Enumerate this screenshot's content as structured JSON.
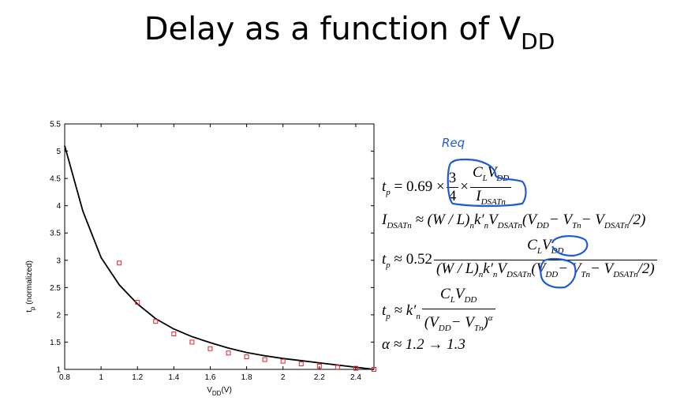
{
  "slide": {
    "title_main": "Delay as a function of V",
    "title_sub": "DD"
  },
  "chart_data": {
    "type": "line",
    "xlabel_main": "V",
    "xlabel_sub": "DD",
    "xlabel_unit": "(V)",
    "ylabel_main": "t",
    "ylabel_sub": "p",
    "ylabel_rest": "(normalized)",
    "xlim": [
      0.8,
      2.5
    ],
    "ylim": [
      1,
      5.5
    ],
    "xticks": [
      0.8,
      1,
      1.2,
      1.4,
      1.6,
      1.8,
      2,
      2.2,
      2.4
    ],
    "xtick_labels": [
      "0.8",
      "1",
      "1.2",
      "1.4",
      "1.6",
      "1.8",
      "2",
      "2.2",
      "2.4"
    ],
    "yticks": [
      1,
      1.5,
      2,
      2.5,
      3,
      3.5,
      4,
      4.5,
      5,
      5.5
    ],
    "ytick_labels": [
      "1",
      "1.5",
      "2",
      "2.5",
      "3",
      "3.5",
      "4",
      "4.5",
      "5",
      "5.5"
    ],
    "grid": false,
    "series": [
      {
        "style": "line",
        "color": "#000000",
        "x": [
          0.8,
          0.9,
          1.0,
          1.1,
          1.2,
          1.3,
          1.4,
          1.5,
          1.6,
          1.7,
          1.8,
          1.9,
          2.0,
          2.1,
          2.2,
          2.3,
          2.4,
          2.5
        ],
        "y": [
          5.1,
          3.9,
          3.05,
          2.55,
          2.2,
          1.93,
          1.74,
          1.6,
          1.49,
          1.39,
          1.31,
          1.25,
          1.2,
          1.16,
          1.12,
          1.08,
          1.04,
          1.0
        ]
      },
      {
        "style": "marker",
        "marker": "square",
        "color": "#e8202a",
        "x": [
          1.1,
          1.2,
          1.3,
          1.4,
          1.5,
          1.6,
          1.7,
          1.8,
          1.9,
          2.0,
          2.1,
          2.2,
          2.3,
          2.4,
          2.5
        ],
        "y": [
          2.95,
          2.23,
          1.88,
          1.65,
          1.5,
          1.38,
          1.3,
          1.23,
          1.18,
          1.15,
          1.1,
          1.06,
          1.04,
          1.02,
          1.0
        ]
      }
    ]
  },
  "equations": {
    "eq1": {
      "lhs": "t",
      "lhs_sub": "p",
      "coef": "= 0.69 ×",
      "frac_num": "3",
      "frac_den": "4",
      "times": "×",
      "num_a": "C",
      "num_a_sub": "L",
      "num_b": "V",
      "num_b_sub": "DD",
      "den": "I",
      "den_sub": "DSATn"
    },
    "eq2": {
      "lhs": "I",
      "lhs_sub": "DSATn",
      "rhs_1": "≈ (W / L)",
      "rhs_1_sub": "n",
      "rhs_2": "k′",
      "rhs_2_sub": "n",
      "rhs_3": "V",
      "rhs_3_sub": "DSATn",
      "rhs_4": "(V",
      "rhs_4_sub": "DD",
      "rhs_5": "− V",
      "rhs_5_sub": "Tn",
      "rhs_6": "− V",
      "rhs_6_sub": "DSATn",
      "rhs_7": "/2)"
    },
    "eq3": {
      "lhs": "t",
      "lhs_sub": "p",
      "coef": "≈ 0.52",
      "num_a": "C",
      "num_a_sub": "L",
      "num_b": "V",
      "num_b_sub": "DD",
      "den_1": "(W / L)",
      "den_1_sub": "n",
      "den_2": "k′",
      "den_2_sub": "n",
      "den_3": "V",
      "den_3_sub": "DSATn",
      "den_4": "(V",
      "den_4_sub": "DD",
      "den_5": "− V",
      "den_5_sub": "Tn",
      "den_6": "− V",
      "den_6_sub": "DSATn",
      "den_7": "/2)"
    },
    "eq4": {
      "lhs": "t",
      "lhs_sub": "p",
      "coef": "≈ k′",
      "coef_sub": "n",
      "num_a": "C",
      "num_a_sub": "L",
      "num_b": "V",
      "num_b_sub": "DD",
      "den_1": "(V",
      "den_1_sub": "DD",
      "den_2": "− V",
      "den_2_sub": "Tn",
      "den_3": ")",
      "den_sup": "α"
    },
    "eq5": {
      "text": "α ≈ 1.2 → 1.3"
    }
  },
  "annotation": {
    "text": "Req",
    "color": "#1f5bd8"
  }
}
